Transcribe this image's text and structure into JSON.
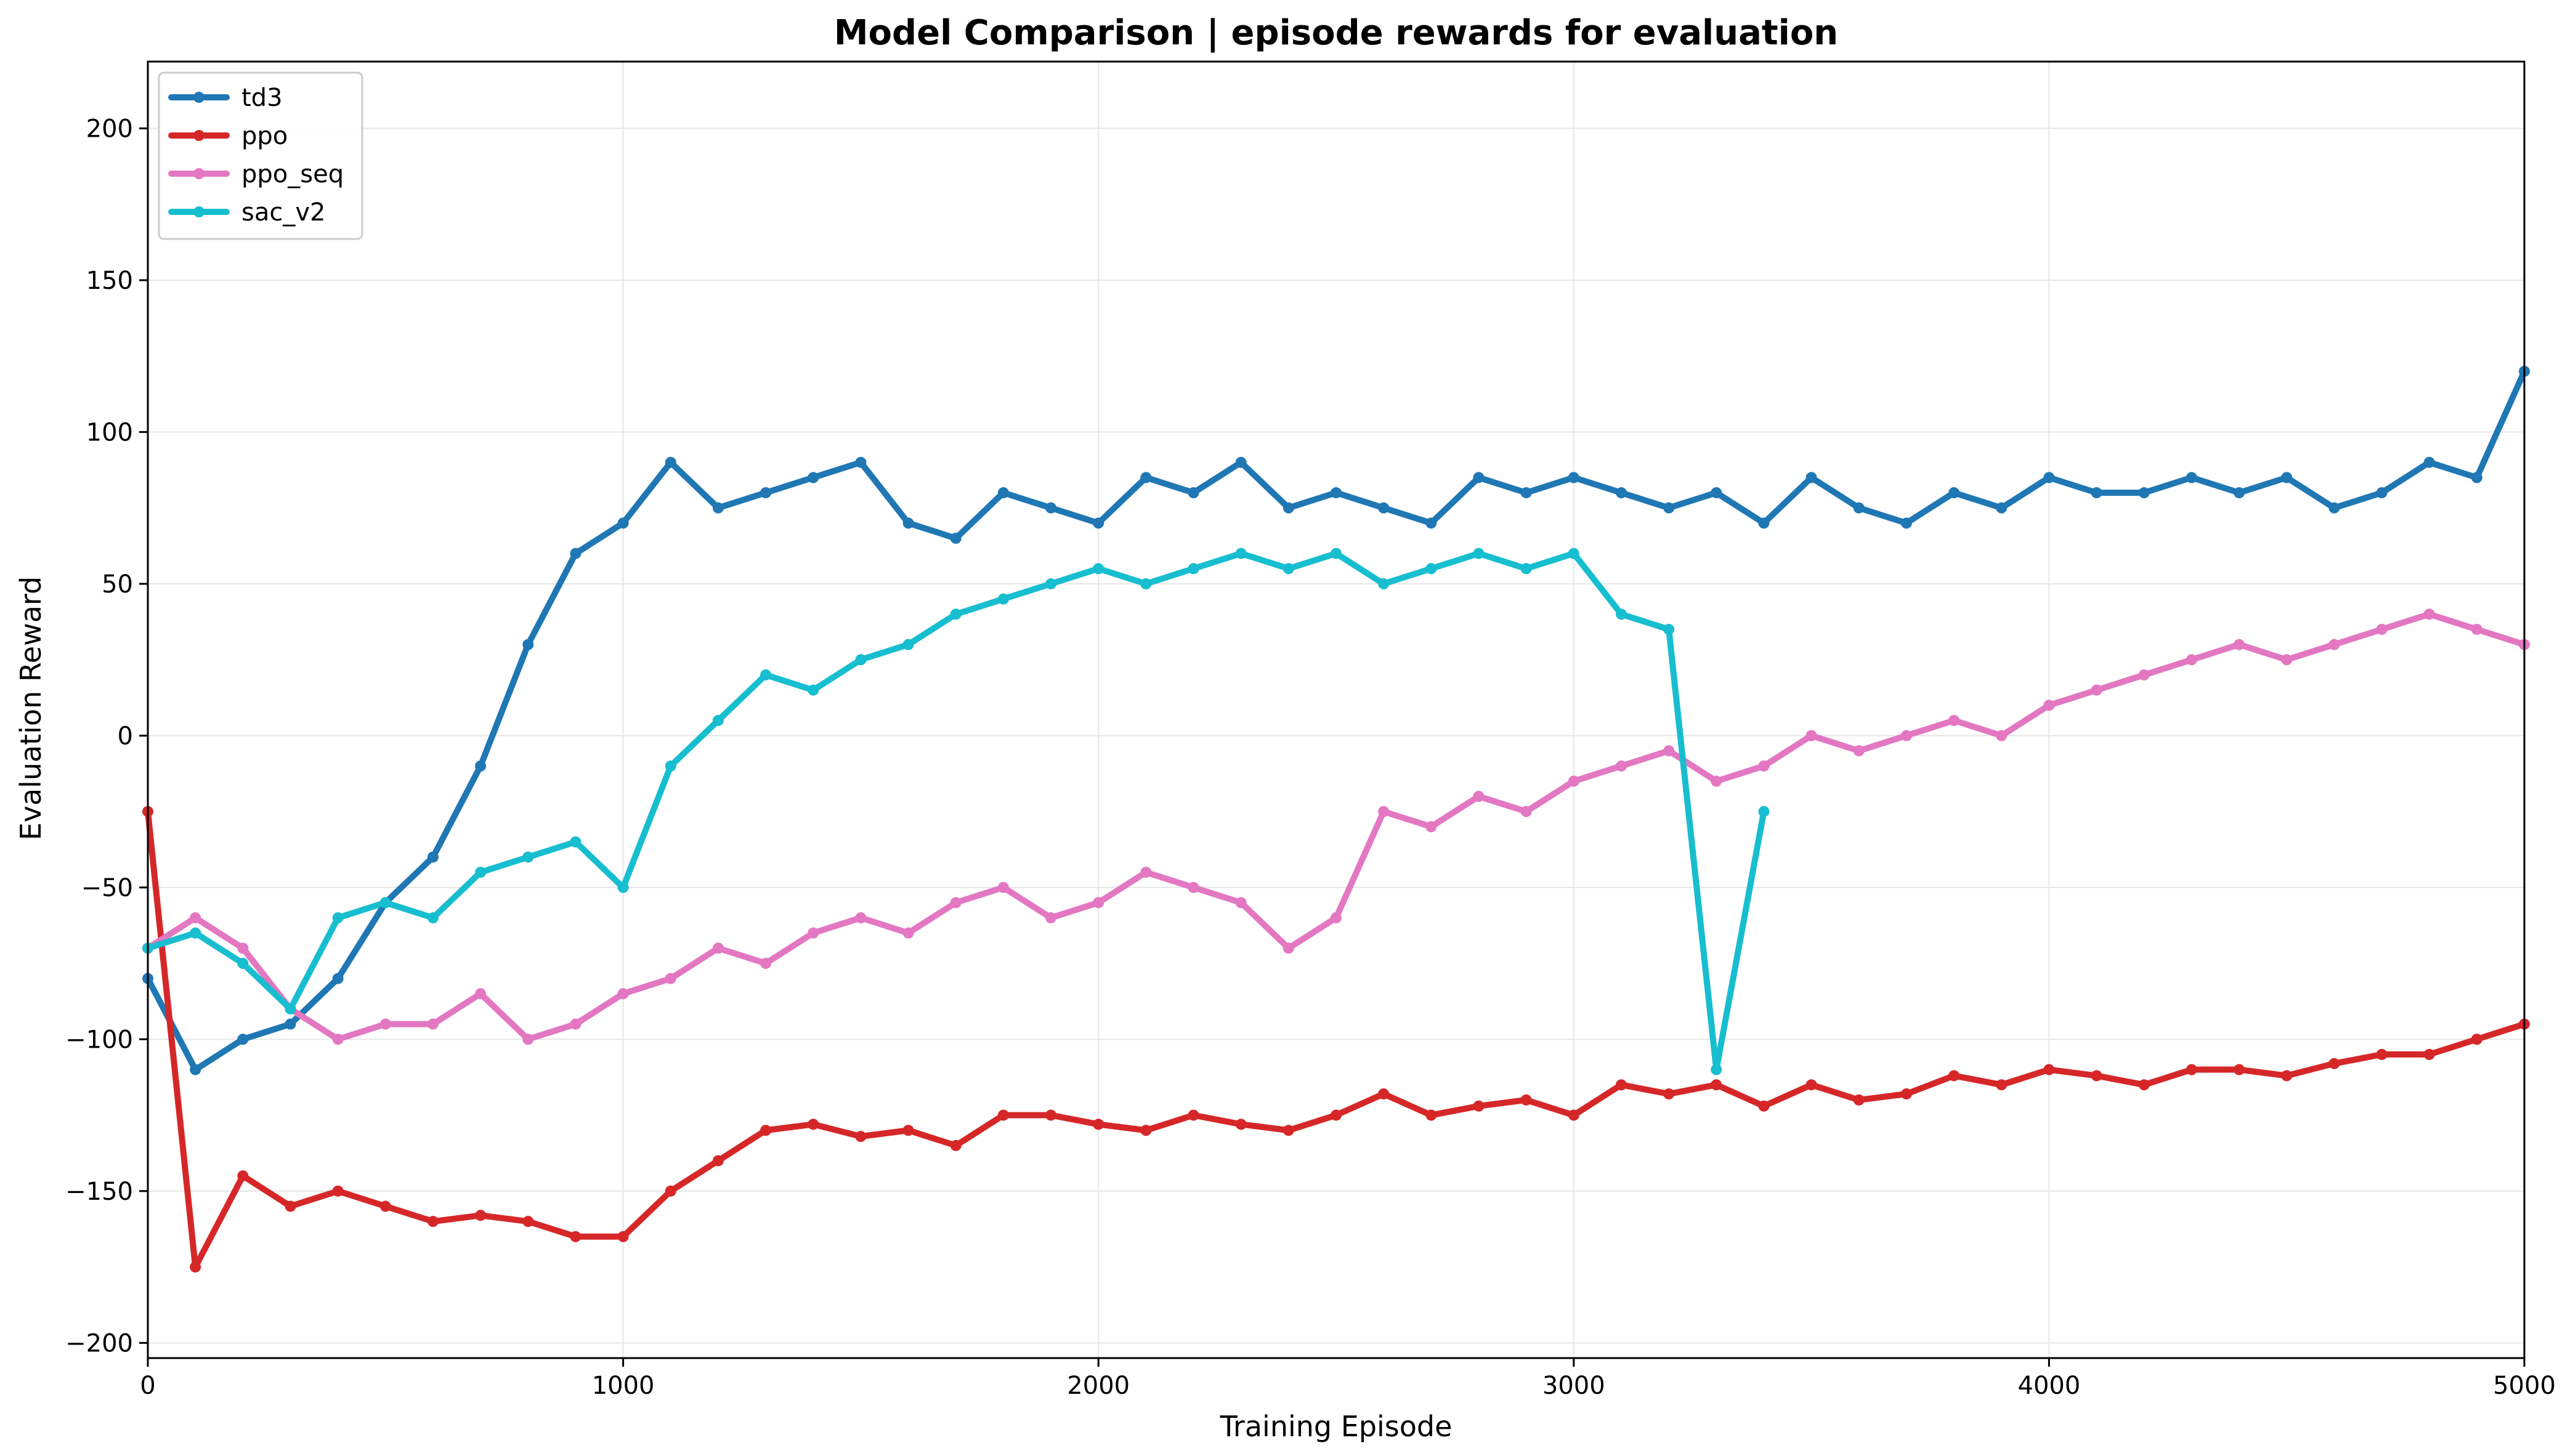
{
  "chart_data": {
    "type": "line",
    "title": "Model Comparison | episode rewards for evaluation",
    "xlabel": "Training Episode",
    "ylabel": "Evaluation Reward",
    "xlim": [
      0,
      5000
    ],
    "ylim": [
      -205,
      222
    ],
    "xticks": [
      0,
      1000,
      2000,
      3000,
      4000,
      5000
    ],
    "yticks": [
      -200,
      -150,
      -100,
      -50,
      0,
      50,
      100,
      150,
      200
    ],
    "grid": true,
    "legend_position": "top-left",
    "series": [
      {
        "name": "td3",
        "color": "#1f77b4",
        "x": [
          0,
          100,
          200,
          300,
          400,
          500,
          600,
          700,
          800,
          900,
          1000,
          1100,
          1200,
          1300,
          1400,
          1500,
          1600,
          1700,
          1800,
          1900,
          2000,
          2100,
          2200,
          2300,
          2400,
          2500,
          2600,
          2700,
          2800,
          2900,
          3000,
          3100,
          3200,
          3300,
          3400,
          3500,
          3600,
          3700,
          3800,
          3900,
          4000,
          4100,
          4200,
          4300,
          4400,
          4500,
          4600,
          4700,
          4800,
          4900,
          5000
        ],
        "y": [
          -80,
          -110,
          -100,
          -95,
          -80,
          -55,
          -40,
          -10,
          30,
          60,
          70,
          90,
          75,
          80,
          85,
          90,
          70,
          65,
          80,
          75,
          70,
          85,
          80,
          90,
          75,
          80,
          75,
          70,
          85,
          80,
          85,
          80,
          75,
          80,
          70,
          85,
          75,
          70,
          80,
          75,
          85,
          80,
          80,
          85,
          80,
          85,
          75,
          80,
          90,
          85,
          120
        ]
      },
      {
        "name": "ppo",
        "color": "#d62728",
        "x": [
          0,
          100,
          200,
          300,
          400,
          500,
          600,
          700,
          800,
          900,
          1000,
          1100,
          1200,
          1300,
          1400,
          1500,
          1600,
          1700,
          1800,
          1900,
          2000,
          2100,
          2200,
          2300,
          2400,
          2500,
          2600,
          2700,
          2800,
          2900,
          3000,
          3100,
          3200,
          3300,
          3400,
          3500,
          3600,
          3700,
          3800,
          3900,
          4000,
          4100,
          4200,
          4300,
          4400,
          4500,
          4600,
          4700,
          4800,
          4900,
          5000
        ],
        "y": [
          -25,
          -175,
          -145,
          -155,
          -150,
          -155,
          -160,
          -158,
          -160,
          -165,
          -165,
          -150,
          -140,
          -130,
          -128,
          -132,
          -130,
          -135,
          -125,
          -125,
          -128,
          -130,
          -125,
          -128,
          -130,
          -125,
          -118,
          -125,
          -122,
          -120,
          -125,
          -115,
          -118,
          -115,
          -122,
          -115,
          -120,
          -118,
          -112,
          -115,
          -110,
          -112,
          -115,
          -110,
          -110,
          -112,
          -108,
          -105,
          -105,
          -100,
          -95
        ]
      },
      {
        "name": "ppo_seq",
        "color": "#e377c2",
        "x": [
          0,
          100,
          200,
          300,
          400,
          500,
          600,
          700,
          800,
          900,
          1000,
          1100,
          1200,
          1300,
          1400,
          1500,
          1600,
          1700,
          1800,
          1900,
          2000,
          2100,
          2200,
          2300,
          2400,
          2500,
          2600,
          2700,
          2800,
          2900,
          3000,
          3100,
          3200,
          3300,
          3400,
          3500,
          3600,
          3700,
          3800,
          3900,
          4000,
          4100,
          4200,
          4300,
          4400,
          4500,
          4600,
          4700,
          4800,
          4900,
          5000
        ],
        "y": [
          -70,
          -60,
          -70,
          -90,
          -100,
          -95,
          -95,
          -85,
          -100,
          -95,
          -85,
          -80,
          -70,
          -75,
          -65,
          -60,
          -65,
          -55,
          -50,
          -60,
          -55,
          -45,
          -50,
          -55,
          -70,
          -60,
          -25,
          -30,
          -20,
          -25,
          -15,
          -10,
          -5,
          -15,
          -10,
          0,
          -5,
          0,
          5,
          0,
          10,
          15,
          20,
          25,
          30,
          25,
          30,
          35,
          40,
          35,
          30
        ]
      },
      {
        "name": "sac_v2",
        "color": "#17becf",
        "x": [
          0,
          100,
          200,
          300,
          400,
          500,
          600,
          700,
          800,
          900,
          1000,
          1100,
          1200,
          1300,
          1400,
          1500,
          1600,
          1700,
          1800,
          1900,
          2000,
          2100,
          2200,
          2300,
          2400,
          2500,
          2600,
          2700,
          2800,
          2900,
          3000,
          3100,
          3200,
          3300,
          3400
        ],
        "y": [
          -70,
          -65,
          -75,
          -90,
          -60,
          -55,
          -60,
          -45,
          -40,
          -35,
          -50,
          -10,
          5,
          20,
          15,
          25,
          30,
          40,
          45,
          50,
          55,
          50,
          55,
          60,
          55,
          60,
          50,
          55,
          60,
          55,
          60,
          40,
          35,
          -110,
          -25
        ]
      }
    ]
  }
}
